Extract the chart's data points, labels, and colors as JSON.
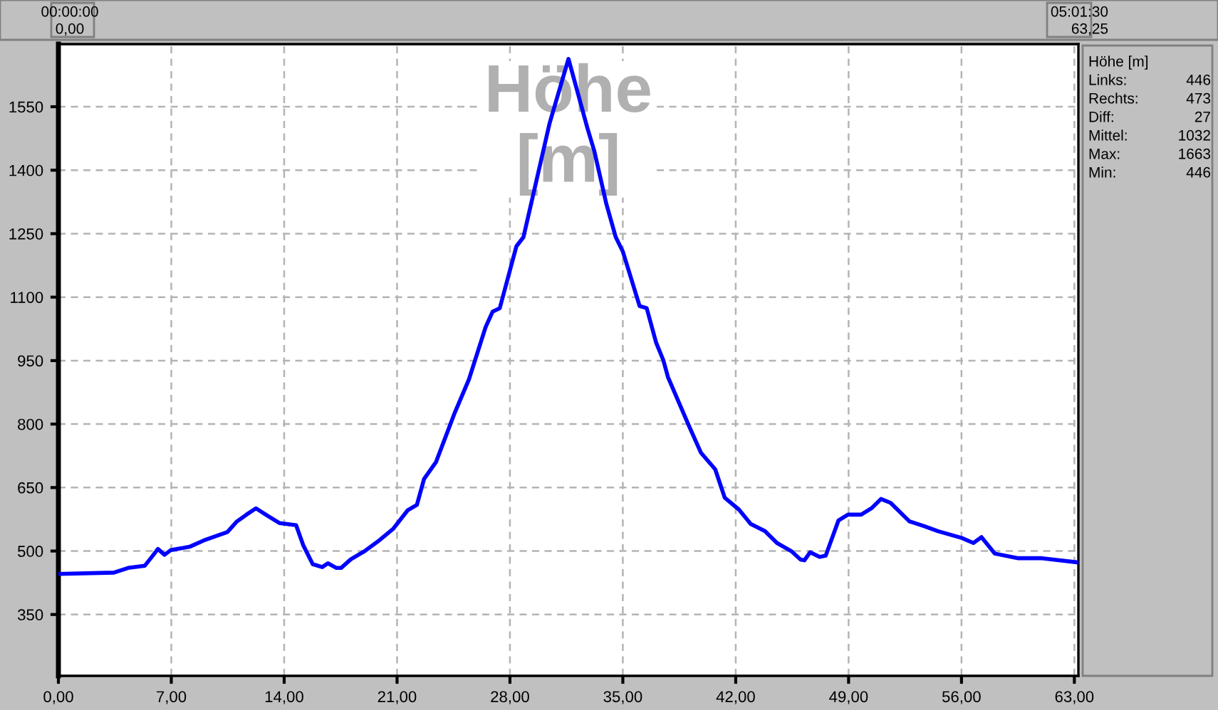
{
  "chart_data": {
    "type": "line",
    "title": "Höhe\n[m]",
    "x": [
      0,
      3.44,
      4.32,
      5.35,
      5.79,
      6.17,
      6.58,
      6.96,
      8.13,
      9.01,
      10.48,
      11.07,
      11.66,
      12.25,
      12.98,
      13.72,
      14.74,
      15.18,
      15.77,
      16.36,
      16.71,
      17.24,
      17.53,
      18.12,
      19.0,
      19.89,
      20.77,
      21.65,
      22.23,
      22.67,
      23.41,
      24.58,
      25.46,
      26.49,
      26.93,
      27.37,
      28.4,
      28.84,
      29.58,
      30.46,
      31.63,
      32.8,
      33.24,
      33.98,
      34.56,
      35.0,
      36.04,
      36.48,
      37.07,
      37.51,
      37.8,
      39.12,
      39.85,
      40.73,
      41.32,
      42.2,
      42.93,
      43.81,
      44.56,
      45.44,
      46.02,
      46.26,
      46.61,
      47.2,
      47.58,
      48.37,
      48.96,
      49.78,
      50.42,
      51.01,
      51.6,
      52.48,
      52.78,
      53.66,
      54.54,
      56.01,
      56.74,
      57.24,
      58.06,
      59.53,
      61.0,
      63.25
    ],
    "series": [
      {
        "color": "#0000ff",
        "values": [
          446,
          449,
          460,
          465,
          486,
          505,
          491,
          502,
          510,
          525,
          545,
          570,
          586,
          601,
          583,
          566,
          561,
          514,
          469,
          462,
          471,
          460,
          460,
          480,
          500,
          525,
          553,
          596,
          609,
          670,
          710,
          827,
          906,
          1029,
          1066,
          1074,
          1220,
          1242,
          1365,
          1511,
          1663,
          1500,
          1444,
          1320,
          1242,
          1208,
          1079,
          1074,
          992,
          951,
          911,
          794,
          732,
          693,
          626,
          598,
          564,
          547,
          519,
          500,
          480,
          478,
          497,
          486,
          489,
          572,
          586,
          586,
          601,
          623,
          614,
          581,
          570,
          559,
          547,
          531,
          519,
          533,
          494,
          483,
          483,
          473
        ]
      }
    ],
    "xlim": [
      0,
      63.25
    ],
    "ylim": [
      205,
      1698
    ],
    "xticks": [
      {
        "value": 0,
        "label": "0,00"
      },
      {
        "value": 7,
        "label": "7,00"
      },
      {
        "value": 14,
        "label": "14,00"
      },
      {
        "value": 21,
        "label": "21,00"
      },
      {
        "value": 28,
        "label": "28,00"
      },
      {
        "value": 35,
        "label": "35,00"
      },
      {
        "value": 42,
        "label": "42,00"
      },
      {
        "value": 49,
        "label": "49,00"
      },
      {
        "value": 56,
        "label": "56,00"
      },
      {
        "value": 63,
        "label": "63,00"
      }
    ],
    "yticks": [
      350,
      500,
      650,
      800,
      950,
      1100,
      1250,
      1400,
      1550
    ],
    "grid": true,
    "marker": "none",
    "line_style": "solid",
    "annotations": [
      "00:00:00",
      "0,00",
      "05:01:30",
      "63,25",
      "Höhe [m]",
      "Links:",
      "446",
      "Rechts:",
      "473",
      "Diff:",
      "27",
      "Mittel:",
      "1032",
      "Max:",
      "1663",
      "Min:",
      "446"
    ]
  }
}
